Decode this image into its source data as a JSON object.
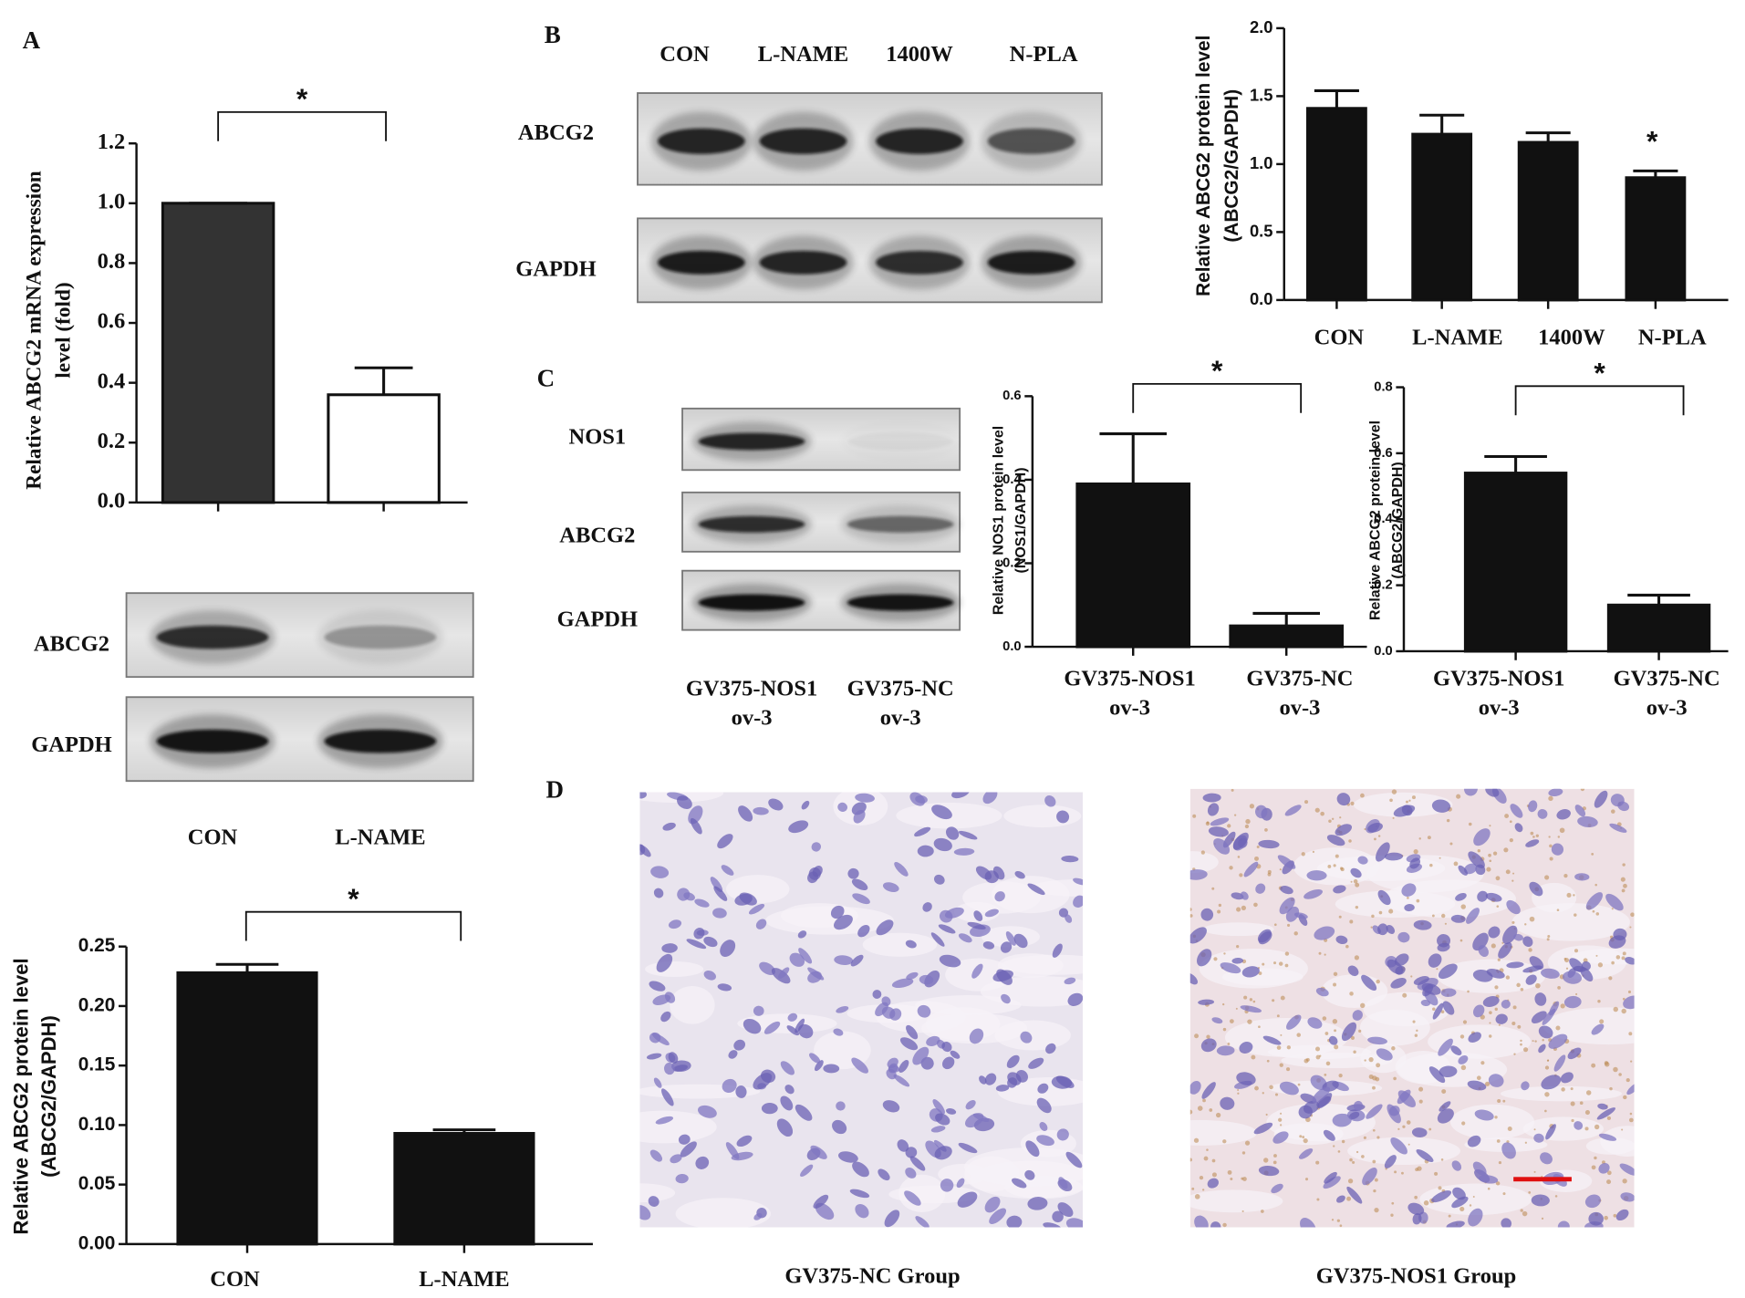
{
  "panel_letters": [
    "A",
    "B",
    "C",
    "D"
  ],
  "blots": [
    {
      "rows": [
        "ABCG2",
        "GAPDH"
      ],
      "lanes": [
        "CON",
        "L-NAME"
      ]
    },
    {
      "rows": [
        "ABCG2",
        "GAPDH"
      ],
      "lanes": [
        "CON",
        "L-NAME",
        "1400W",
        "N-PLA"
      ]
    },
    {
      "rows": [
        "NOS1",
        "ABCG2",
        "GAPDH"
      ],
      "lanes": [
        [
          "GV375-NOS1",
          "ov-3"
        ],
        [
          "GV375-NC",
          "ov-3"
        ]
      ]
    }
  ],
  "micrographs": [
    {
      "caption": "GV375-NC Group"
    },
    {
      "caption": "GV375-NOS1 Group"
    }
  ],
  "chart_data": [
    {
      "type": "bar",
      "ylabel": [
        "Relative ABCG2 mRNA expression",
        "level (fold)"
      ],
      "categories": [
        null,
        null
      ],
      "values": [
        1.0,
        0.36
      ],
      "error": [
        0,
        0.09
      ],
      "colors": [
        "#333333",
        "#ffffff"
      ],
      "ylim": [
        0,
        1.2
      ],
      "yticks": [
        {
          "value": 0,
          "label": "0.0"
        },
        0.2,
        0.4,
        0.6,
        0.8,
        {
          "value": 1,
          "label": "1.0"
        },
        1.2
      ],
      "annotations": [
        "*"
      ]
    },
    {
      "type": "bar",
      "ylabel": [
        "Relative ABCG2 protein level",
        "(ABCG2/GAPDH)"
      ],
      "categories": [
        "CON",
        "L-NAME"
      ],
      "values": [
        0.228,
        0.093
      ],
      "error": [
        0.007,
        0.003
      ],
      "color": "#111111",
      "ylim": [
        0,
        0.25
      ],
      "yticks": [
        {
          "value": 0,
          "label": "0.00"
        },
        0.05,
        {
          "value": 0.1,
          "label": "0.10"
        },
        0.15,
        {
          "value": 0.2,
          "label": "0.20"
        },
        0.25
      ],
      "annotations": [
        "*"
      ]
    },
    {
      "type": "bar",
      "ylabel": [
        "Relative ABCG2 protein level",
        "(ABCG2/GAPDH)"
      ],
      "categories": [
        "CON",
        "L-NAME",
        "1400W",
        "N-PLA"
      ],
      "values": [
        1.41,
        1.22,
        1.16,
        0.9
      ],
      "error": [
        0.13,
        0.14,
        0.07,
        0.05
      ],
      "color": "#111111",
      "ylim": [
        0,
        2
      ],
      "yticks": [
        {
          "value": 0,
          "label": "0.0"
        },
        0.5,
        {
          "value": 1,
          "label": "1.0"
        },
        1.5,
        {
          "value": 2,
          "label": "2.0"
        }
      ],
      "annotations": [
        "*"
      ]
    },
    {
      "type": "bar",
      "ylabel": [
        "Relative NOS1 protein level",
        "(NOS1/GAPDH)"
      ],
      "categories": [
        [
          "GV375-NOS1",
          "ov-3"
        ],
        [
          "GV375-NC",
          "ov-3"
        ]
      ],
      "values": [
        0.39,
        0.05
      ],
      "error": [
        0.12,
        0.03
      ],
      "color": "#111111",
      "ylim": [
        0,
        0.6
      ],
      "yticks": [
        {
          "value": 0,
          "label": "0.0"
        },
        0.2,
        0.4,
        0.6
      ],
      "annotations": [
        "*"
      ]
    },
    {
      "type": "bar",
      "ylabel": [
        "Relative ABCG2 protein level",
        "(ABCG2/GAPDH)"
      ],
      "categories": [
        [
          "GV375-NOS1",
          "ov-3"
        ],
        [
          "GV375-NC",
          "ov-3"
        ]
      ],
      "values": [
        0.54,
        0.14
      ],
      "error": [
        0.05,
        0.03
      ],
      "color": "#111111",
      "ylim": [
        0,
        0.8
      ],
      "yticks": [
        {
          "value": 0,
          "label": "0.0"
        },
        0.2,
        0.4,
        0.6,
        0.8
      ],
      "annotations": [
        "*"
      ]
    }
  ]
}
